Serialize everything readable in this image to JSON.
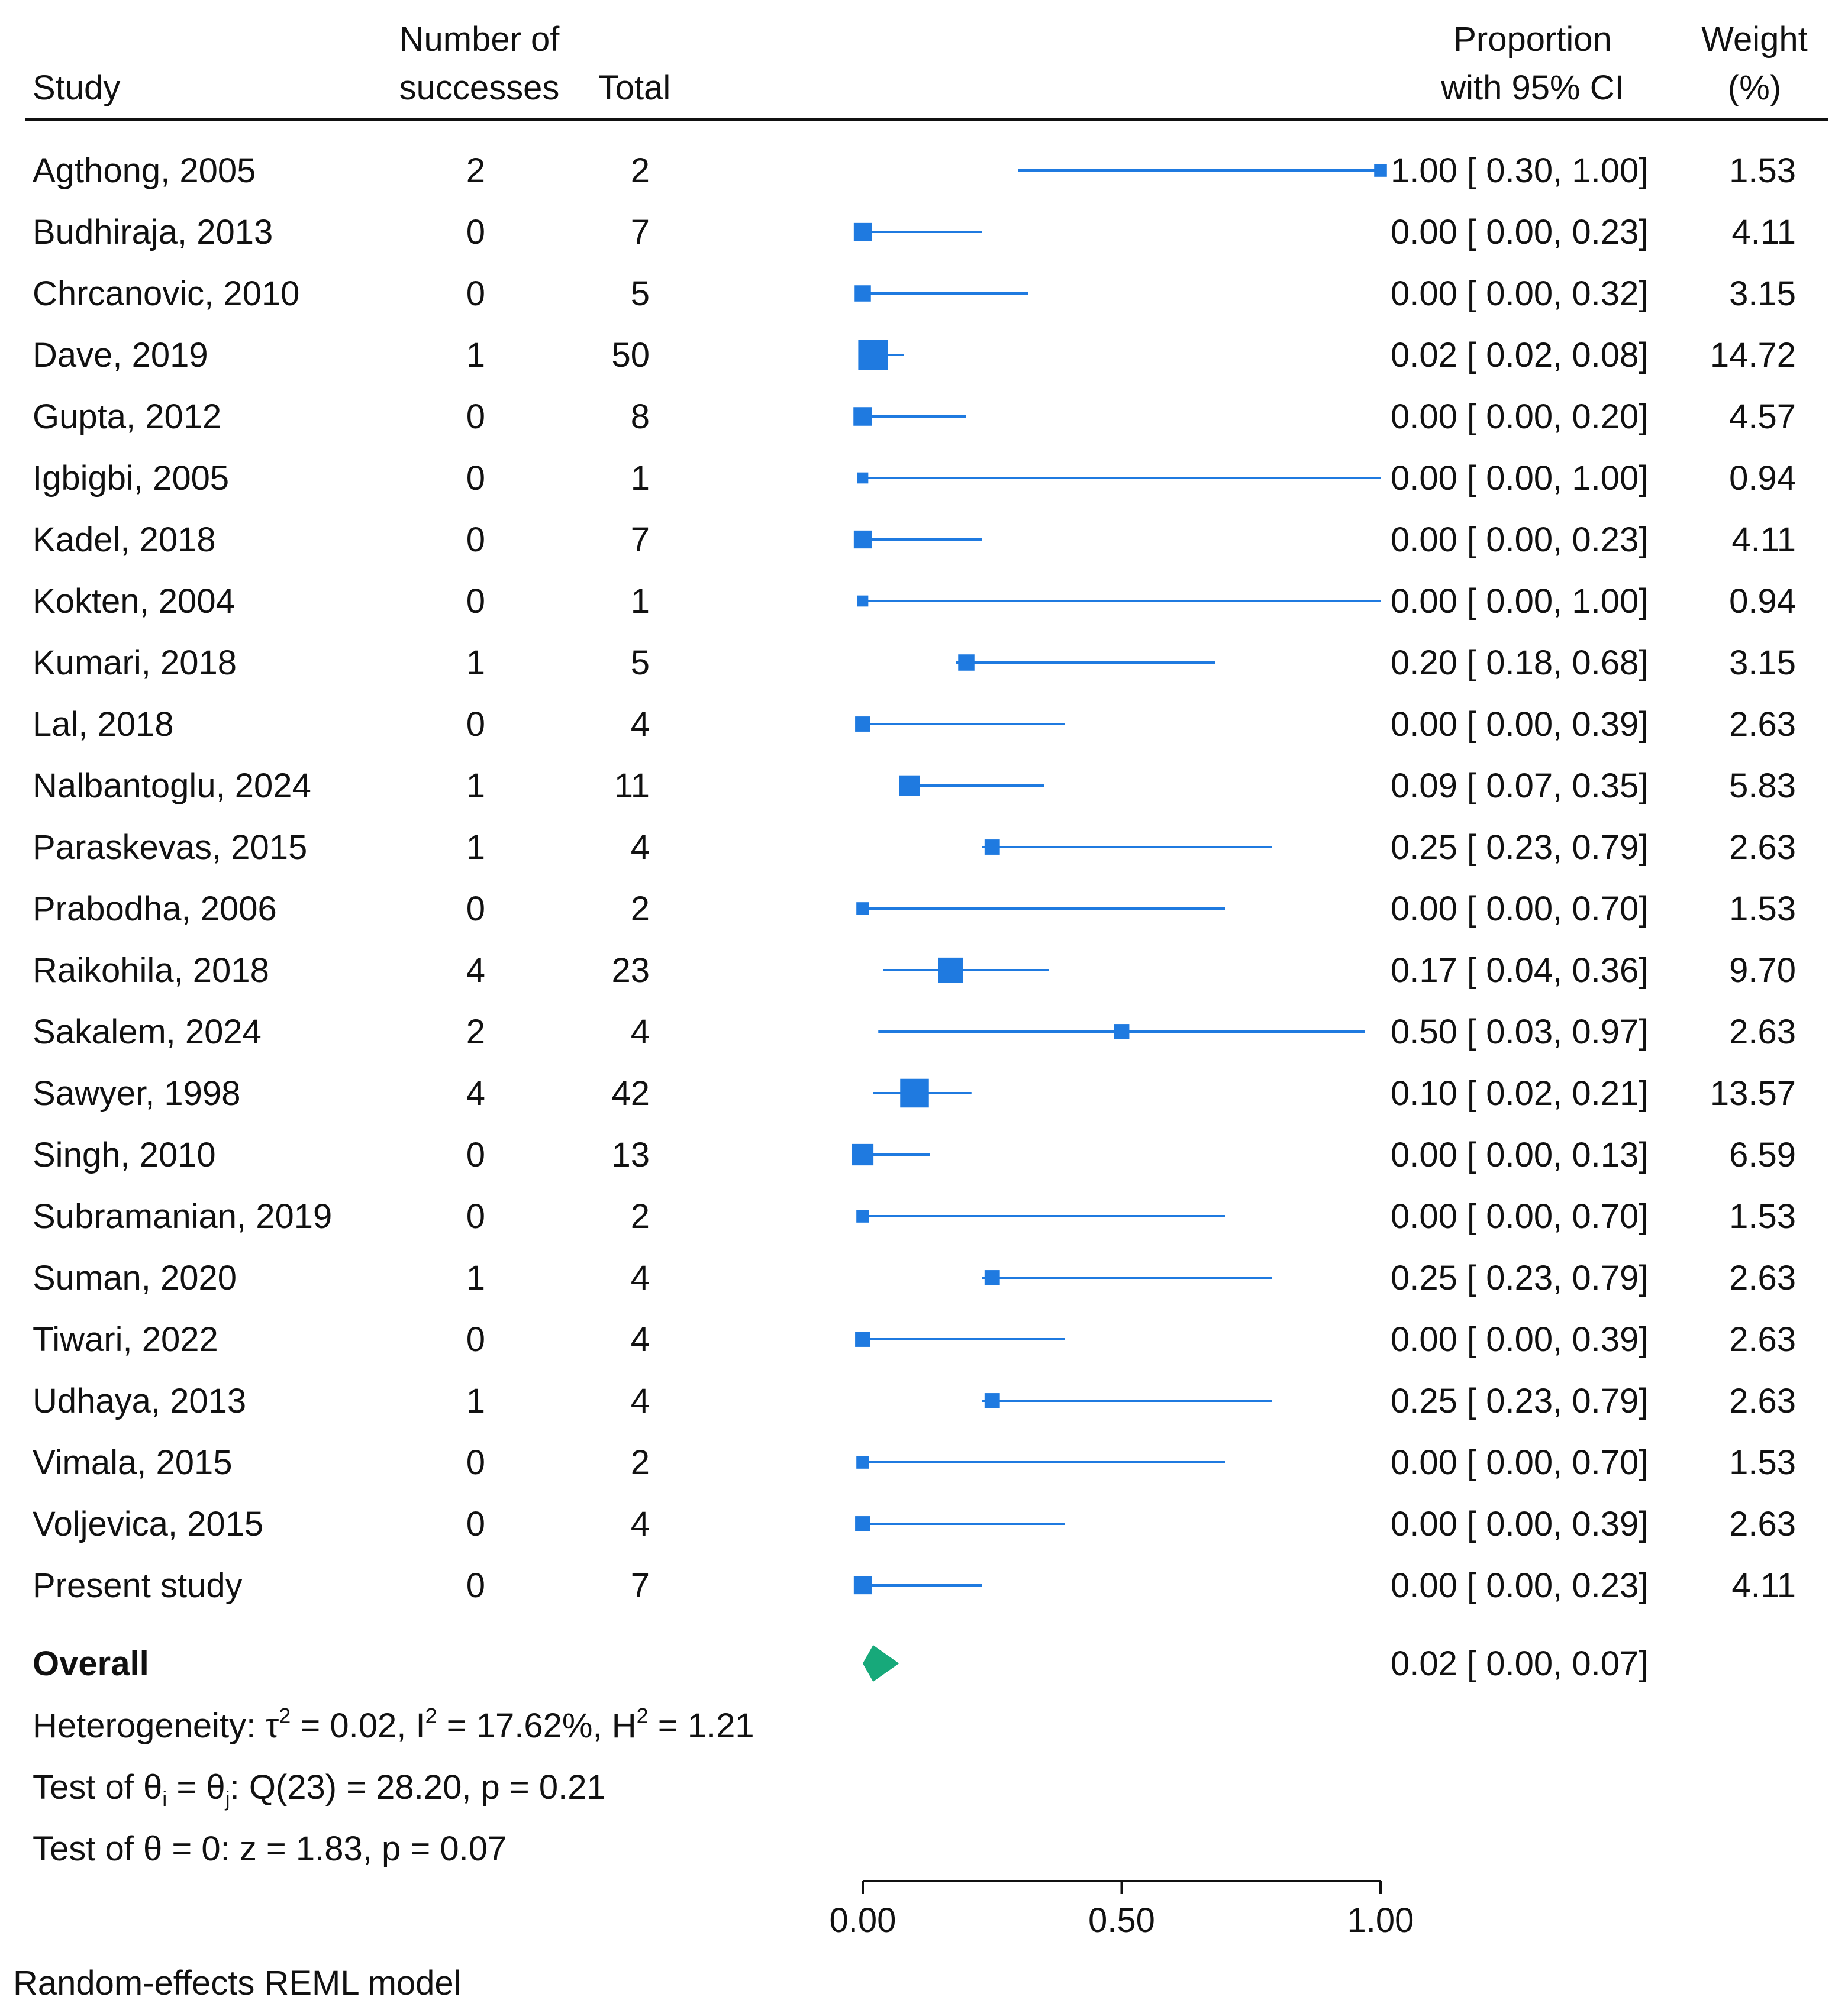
{
  "header": {
    "study": "Study",
    "successes_line1": "Number of",
    "successes_line2": "successes",
    "total": "Total",
    "proportion_line1": "Proportion",
    "proportion_line2": "with 95% CI",
    "weight_line1": "Weight",
    "weight_line2": "(%)"
  },
  "overall": {
    "label": "Overall",
    "ci_text": "0.02 [ 0.00,  0.07]",
    "estimate": 0.02,
    "lower": 0.0,
    "upper": 0.07
  },
  "stats": {
    "heterogeneity_prefix": "Heterogeneity: τ",
    "heterogeneity_tau_sup": "2",
    "heterogeneity_mid1": " = 0.02, I",
    "heterogeneity_i_sup": "2",
    "heterogeneity_mid2": " = 17.62%, H",
    "heterogeneity_h_sup": "2",
    "heterogeneity_end": " = 1.21",
    "test1_prefix": "Test of θ",
    "test1_sub_i": "i",
    "test1_mid": " = θ",
    "test1_sub_j": "j",
    "test1_end": ": Q(23) = 28.20, p = 0.21",
    "test2": "Test of θ = 0: z = 1.83, p = 0.07"
  },
  "footer": {
    "model": "Random-effects REML model"
  },
  "colors": {
    "marker": "#1f7ae0",
    "diamond": "#17a97a",
    "text": "#111111"
  },
  "chart_data": {
    "type": "forest",
    "xlim": [
      0,
      1
    ],
    "ticks": [
      0,
      0.5,
      1
    ],
    "tick_labels": [
      "0.00",
      "0.50",
      "1.00"
    ],
    "rows": [
      {
        "study": "Agthong, 2005",
        "successes": "2",
        "total": "2",
        "est": 1.0,
        "lo": 0.3,
        "hi": 1.0,
        "ci_text": "1.00 [ 0.30,  1.00]",
        "weight": "1.53"
      },
      {
        "study": "Budhiraja, 2013",
        "successes": "0",
        "total": "7",
        "est": 0.0,
        "lo": 0.0,
        "hi": 0.23,
        "ci_text": "0.00 [ 0.00,  0.23]",
        "weight": "4.11"
      },
      {
        "study": "Chrcanovic, 2010",
        "successes": "0",
        "total": "5",
        "est": 0.0,
        "lo": 0.0,
        "hi": 0.32,
        "ci_text": "0.00 [ 0.00,  0.32]",
        "weight": "3.15"
      },
      {
        "study": "Dave, 2019",
        "successes": "1",
        "total": "50",
        "est": 0.02,
        "lo": 0.02,
        "hi": 0.08,
        "ci_text": "0.02 [ 0.02,  0.08]",
        "weight": "14.72"
      },
      {
        "study": "Gupta, 2012",
        "successes": "0",
        "total": "8",
        "est": 0.0,
        "lo": 0.0,
        "hi": 0.2,
        "ci_text": "0.00 [ 0.00,  0.20]",
        "weight": "4.57"
      },
      {
        "study": "Igbigbi, 2005",
        "successes": "0",
        "total": "1",
        "est": 0.0,
        "lo": 0.0,
        "hi": 1.0,
        "ci_text": "0.00 [ 0.00,  1.00]",
        "weight": "0.94"
      },
      {
        "study": "Kadel, 2018",
        "successes": "0",
        "total": "7",
        "est": 0.0,
        "lo": 0.0,
        "hi": 0.23,
        "ci_text": "0.00 [ 0.00,  0.23]",
        "weight": "4.11"
      },
      {
        "study": "Kokten, 2004",
        "successes": "0",
        "total": "1",
        "est": 0.0,
        "lo": 0.0,
        "hi": 1.0,
        "ci_text": "0.00 [ 0.00,  1.00]",
        "weight": "0.94"
      },
      {
        "study": "Kumari, 2018",
        "successes": "1",
        "total": "5",
        "est": 0.2,
        "lo": 0.18,
        "hi": 0.68,
        "ci_text": "0.20 [ 0.18,  0.68]",
        "weight": "3.15"
      },
      {
        "study": "Lal, 2018",
        "successes": "0",
        "total": "4",
        "est": 0.0,
        "lo": 0.0,
        "hi": 0.39,
        "ci_text": "0.00 [ 0.00,  0.39]",
        "weight": "2.63"
      },
      {
        "study": "Nalbantoglu, 2024",
        "successes": "1",
        "total": "11",
        "est": 0.09,
        "lo": 0.07,
        "hi": 0.35,
        "ci_text": "0.09 [ 0.07,  0.35]",
        "weight": "5.83"
      },
      {
        "study": "Paraskevas, 2015",
        "successes": "1",
        "total": "4",
        "est": 0.25,
        "lo": 0.23,
        "hi": 0.79,
        "ci_text": "0.25 [ 0.23,  0.79]",
        "weight": "2.63"
      },
      {
        "study": "Prabodha, 2006",
        "successes": "0",
        "total": "2",
        "est": 0.0,
        "lo": 0.0,
        "hi": 0.7,
        "ci_text": "0.00 [ 0.00,  0.70]",
        "weight": "1.53"
      },
      {
        "study": "Raikohila, 2018",
        "successes": "4",
        "total": "23",
        "est": 0.17,
        "lo": 0.04,
        "hi": 0.36,
        "ci_text": "0.17 [ 0.04,  0.36]",
        "weight": "9.70"
      },
      {
        "study": "Sakalem, 2024",
        "successes": "2",
        "total": "4",
        "est": 0.5,
        "lo": 0.03,
        "hi": 0.97,
        "ci_text": "0.50 [ 0.03,  0.97]",
        "weight": "2.63"
      },
      {
        "study": "Sawyer, 1998",
        "successes": "4",
        "total": "42",
        "est": 0.1,
        "lo": 0.02,
        "hi": 0.21,
        "ci_text": "0.10 [ 0.02,  0.21]",
        "weight": "13.57"
      },
      {
        "study": "Singh, 2010",
        "successes": "0",
        "total": "13",
        "est": 0.0,
        "lo": 0.0,
        "hi": 0.13,
        "ci_text": "0.00 [ 0.00,  0.13]",
        "weight": "6.59"
      },
      {
        "study": "Subramanian, 2019",
        "successes": "0",
        "total": "2",
        "est": 0.0,
        "lo": 0.0,
        "hi": 0.7,
        "ci_text": "0.00 [ 0.00,  0.70]",
        "weight": "1.53"
      },
      {
        "study": "Suman, 2020",
        "successes": "1",
        "total": "4",
        "est": 0.25,
        "lo": 0.23,
        "hi": 0.79,
        "ci_text": "0.25 [ 0.23,  0.79]",
        "weight": "2.63"
      },
      {
        "study": "Tiwari, 2022",
        "successes": "0",
        "total": "4",
        "est": 0.0,
        "lo": 0.0,
        "hi": 0.39,
        "ci_text": "0.00 [ 0.00,  0.39]",
        "weight": "2.63"
      },
      {
        "study": "Udhaya, 2013",
        "successes": "1",
        "total": "4",
        "est": 0.25,
        "lo": 0.23,
        "hi": 0.79,
        "ci_text": "0.25 [ 0.23,  0.79]",
        "weight": "2.63"
      },
      {
        "study": "Vimala, 2015",
        "successes": "0",
        "total": "2",
        "est": 0.0,
        "lo": 0.0,
        "hi": 0.7,
        "ci_text": "0.00 [ 0.00,  0.70]",
        "weight": "1.53"
      },
      {
        "study": "Voljevica, 2015",
        "successes": "0",
        "total": "4",
        "est": 0.0,
        "lo": 0.0,
        "hi": 0.39,
        "ci_text": "0.00 [ 0.00,  0.39]",
        "weight": "2.63"
      },
      {
        "study": "Present study",
        "successes": "0",
        "total": "7",
        "est": 0.0,
        "lo": 0.0,
        "hi": 0.23,
        "ci_text": "0.00 [ 0.00,  0.23]",
        "weight": "4.11"
      }
    ]
  }
}
